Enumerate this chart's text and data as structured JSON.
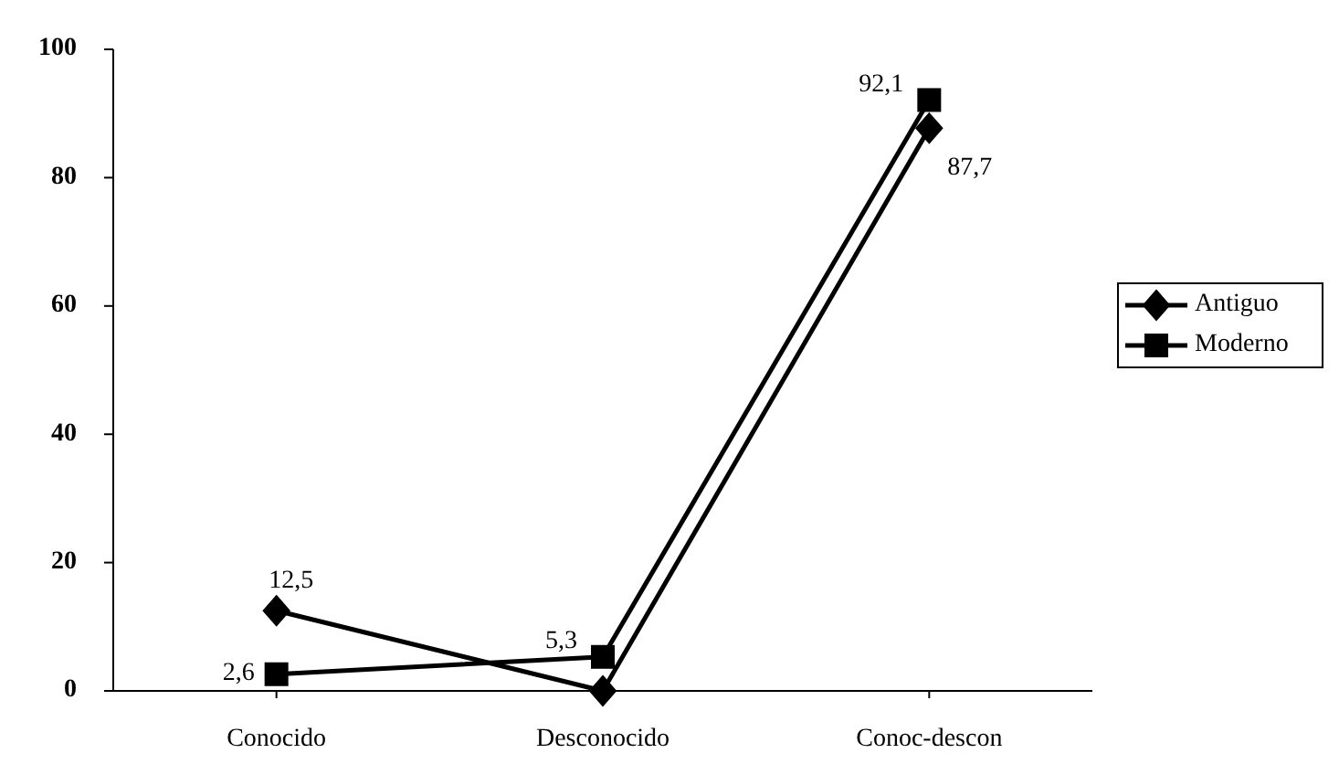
{
  "chart_data": {
    "type": "line",
    "categories": [
      "Conocido",
      "Desconocido",
      "Conoc-descon"
    ],
    "ylim": [
      0,
      100
    ],
    "yticks": [
      0,
      20,
      40,
      60,
      80,
      100
    ],
    "grid": false,
    "legend": "right",
    "series": [
      {
        "name": "Antiguo",
        "color": "#000000",
        "marker": "diamond",
        "values": [
          12.5,
          0,
          87.7
        ],
        "value_labels": [
          "12,5",
          null,
          "87,7"
        ]
      },
      {
        "name": "Moderno",
        "color": "#000000",
        "marker": "square",
        "values": [
          2.6,
          5.3,
          92.1
        ],
        "value_labels": [
          "2,6",
          "5,3",
          "92,1"
        ]
      }
    ]
  }
}
